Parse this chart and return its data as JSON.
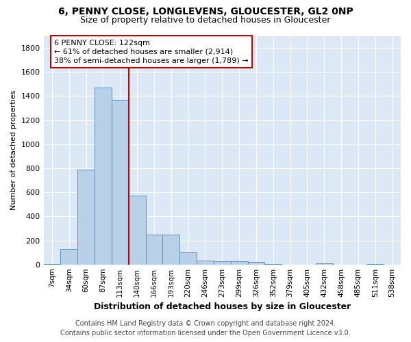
{
  "title1": "6, PENNY CLOSE, LONGLEVENS, GLOUCESTER, GL2 0NP",
  "title2": "Size of property relative to detached houses in Gloucester",
  "xlabel": "Distribution of detached houses by size in Gloucester",
  "ylabel": "Number of detached properties",
  "categories": [
    "7sqm",
    "34sqm",
    "60sqm",
    "87sqm",
    "113sqm",
    "140sqm",
    "166sqm",
    "193sqm",
    "220sqm",
    "246sqm",
    "273sqm",
    "299sqm",
    "326sqm",
    "352sqm",
    "379sqm",
    "405sqm",
    "432sqm",
    "458sqm",
    "485sqm",
    "511sqm",
    "538sqm"
  ],
  "values": [
    5,
    130,
    790,
    1470,
    1370,
    575,
    250,
    250,
    100,
    35,
    25,
    25,
    20,
    5,
    0,
    0,
    10,
    0,
    0,
    5,
    0
  ],
  "bar_color": "#b8d0e8",
  "bar_edge_color": "#6090b8",
  "annotation_box_color": "#ffffff",
  "annotation_box_edge": "#cc0000",
  "red_line_color": "#cc0000",
  "property_label": "6 PENNY CLOSE: 122sqm",
  "annotation_line1": "← 61% of detached houses are smaller (2,914)",
  "annotation_line2": "38% of semi-detached houses are larger (1,789) →",
  "ylim": [
    0,
    1900
  ],
  "yticks": [
    0,
    200,
    400,
    600,
    800,
    1000,
    1200,
    1400,
    1600,
    1800
  ],
  "footer_line1": "Contains HM Land Registry data © Crown copyright and database right 2024.",
  "footer_line2": "Contains public sector information licensed under the Open Government Licence v3.0.",
  "plot_bg_color": "#dce8f5",
  "fig_bg_color": "#ffffff",
  "grid_color": "#ffffff",
  "title1_fontsize": 10,
  "title2_fontsize": 9,
  "xlabel_fontsize": 9,
  "ylabel_fontsize": 8,
  "xtick_fontsize": 7.5,
  "ytick_fontsize": 8,
  "annotation_fontsize": 8,
  "footer_fontsize": 7
}
